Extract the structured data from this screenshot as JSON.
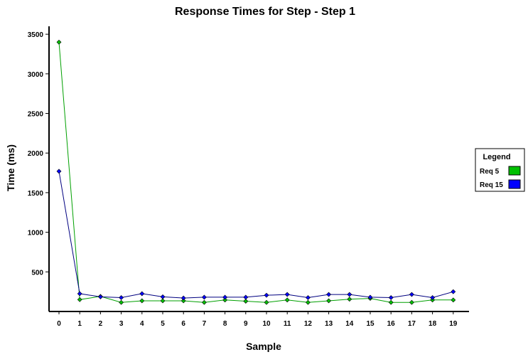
{
  "chart_data": {
    "type": "line",
    "title": "Response Times for Step - Step 1",
    "xlabel": "Sample",
    "ylabel": "Time (ms)",
    "x": [
      0,
      1,
      2,
      3,
      4,
      5,
      6,
      7,
      8,
      9,
      10,
      11,
      12,
      13,
      14,
      15,
      16,
      17,
      18,
      19
    ],
    "yticks": [
      500,
      1000,
      1500,
      2000,
      2500,
      3000,
      3500
    ],
    "ylim": [
      0,
      3600
    ],
    "grid": false,
    "legend": {
      "title": "Legend",
      "position": "right"
    },
    "series": [
      {
        "name": "Req 5",
        "color": "#00c000",
        "line_color": "#00a000",
        "values": [
          3400,
          150,
          190,
          115,
          135,
          135,
          135,
          115,
          145,
          130,
          115,
          145,
          115,
          135,
          155,
          165,
          115,
          115,
          145,
          145
        ]
      },
      {
        "name": "Req 15",
        "color": "#0000ff",
        "line_color": "#000080",
        "values": [
          1770,
          225,
          185,
          175,
          225,
          185,
          170,
          180,
          180,
          180,
          205,
          215,
          175,
          215,
          215,
          180,
          175,
          215,
          175,
          250
        ]
      }
    ]
  }
}
